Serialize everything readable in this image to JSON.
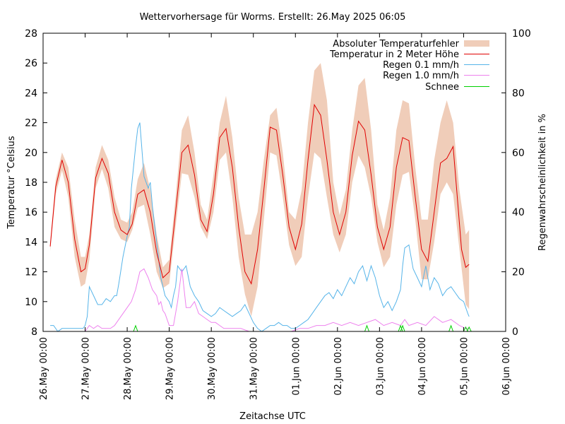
{
  "chart_data": {
    "type": "line",
    "title": "Wettervorhersage für Worms. Erstellt: 26.May 2025 06:05",
    "xlabel": "Zeitachse UTC",
    "ylabel": "Temperatur °Celsius",
    "y2label": "Regenwahrscheinlichkeit in %",
    "ylim": [
      8,
      28
    ],
    "y2lim": [
      0,
      100
    ],
    "yticks": [
      "8",
      "10",
      "12",
      "14",
      "16",
      "18",
      "20",
      "22",
      "24",
      "26",
      "28"
    ],
    "y2ticks": [
      "0",
      "20",
      "40",
      "60",
      "80",
      "100"
    ],
    "xlim_days": [
      0,
      11
    ],
    "xticks": [
      "26.May 00:00",
      "27.May 00:00",
      "28.May 00:00",
      "29.May 00:00",
      "30.May 00:00",
      "31.May 00:00",
      "01.Jun 00:00",
      "02.Jun 00:00",
      "03.Jun 00:00",
      "04.Jun 00:00",
      "05.Jun 00:00",
      "06.Jun 00:00"
    ],
    "grid": false,
    "legend_position": "top-right",
    "colors": {
      "temperature": "#e00000",
      "error_band": "#f0cdb9",
      "rain01": "#56b4e9",
      "rain10": "#ee82ee",
      "snow": "#00d000"
    },
    "series": [
      {
        "name": "Absoluter Temperaturfehler",
        "kind": "band",
        "x_days": [
          0.17,
          0.3,
          0.45,
          0.6,
          0.75,
          0.9,
          1.0,
          1.1,
          1.25,
          1.4,
          1.55,
          1.7,
          1.85,
          2.0,
          2.12,
          2.25,
          2.4,
          2.55,
          2.7,
          2.85,
          3.0,
          3.15,
          3.3,
          3.45,
          3.6,
          3.75,
          3.9,
          4.05,
          4.2,
          4.35,
          4.5,
          4.65,
          4.8,
          4.95,
          5.1,
          5.25,
          5.4,
          5.55,
          5.7,
          5.85,
          6.0,
          6.15,
          6.3,
          6.45,
          6.6,
          6.75,
          6.9,
          7.05,
          7.2,
          7.35,
          7.5,
          7.65,
          7.8,
          7.95,
          8.1,
          8.25,
          8.4,
          8.55,
          8.7,
          8.85,
          9.0,
          9.15,
          9.3,
          9.45,
          9.6,
          9.75,
          9.9,
          10.05,
          10.13
        ],
        "lower": [
          13.4,
          17.2,
          18.8,
          17.0,
          13.0,
          11.0,
          11.2,
          12.8,
          17.6,
          18.9,
          17.6,
          15.0,
          14.2,
          14.0,
          14.8,
          16.3,
          16.5,
          14.5,
          12.0,
          10.9,
          11.2,
          15.0,
          18.6,
          18.5,
          17.0,
          15.0,
          14.2,
          16.0,
          19.5,
          20.0,
          17.0,
          13.0,
          10.5,
          9.0,
          11.0,
          15.5,
          20.0,
          19.8,
          17.0,
          13.8,
          12.4,
          13.0,
          17.0,
          20.0,
          19.6,
          17.0,
          14.5,
          13.3,
          14.5,
          18.0,
          19.8,
          19.0,
          17.0,
          14.0,
          12.3,
          13.0,
          16.5,
          18.5,
          18.7,
          15.5,
          11.5,
          11.5,
          14.0,
          17.2,
          18.0,
          17.2,
          13.5,
          9.8,
          9.5
        ],
        "upper": [
          14.0,
          18.2,
          20.0,
          19.0,
          15.5,
          13.0,
          13.0,
          14.5,
          19.0,
          20.5,
          19.5,
          17.0,
          15.5,
          15.3,
          16.0,
          18.2,
          19.3,
          17.5,
          14.5,
          12.3,
          12.8,
          17.0,
          21.5,
          22.5,
          20.0,
          16.5,
          15.5,
          18.5,
          22.0,
          23.8,
          21.0,
          17.0,
          14.5,
          14.5,
          16.0,
          19.5,
          22.5,
          23.0,
          20.0,
          16.0,
          15.5,
          17.5,
          22.0,
          25.5,
          26.0,
          23.5,
          18.0,
          15.8,
          17.5,
          21.5,
          24.5,
          25.0,
          21.5,
          16.5,
          14.8,
          17.0,
          21.5,
          23.5,
          23.3,
          19.0,
          15.5,
          15.5,
          19.5,
          22.0,
          23.5,
          22.0,
          17.5,
          14.5,
          14.8
        ]
      },
      {
        "name": "Temperatur in 2 Meter Höhe",
        "x_days": [
          0.17,
          0.3,
          0.45,
          0.6,
          0.75,
          0.9,
          1.0,
          1.1,
          1.25,
          1.4,
          1.55,
          1.7,
          1.85,
          2.0,
          2.12,
          2.25,
          2.4,
          2.55,
          2.7,
          2.85,
          3.0,
          3.15,
          3.3,
          3.45,
          3.6,
          3.75,
          3.9,
          4.05,
          4.2,
          4.35,
          4.5,
          4.65,
          4.8,
          4.95,
          5.1,
          5.25,
          5.4,
          5.55,
          5.7,
          5.85,
          6.0,
          6.15,
          6.3,
          6.45,
          6.6,
          6.75,
          6.9,
          7.05,
          7.2,
          7.35,
          7.5,
          7.65,
          7.8,
          7.95,
          8.1,
          8.25,
          8.4,
          8.55,
          8.7,
          8.85,
          9.0,
          9.15,
          9.3,
          9.45,
          9.6,
          9.75,
          9.85,
          9.95,
          10.05,
          10.13
        ],
        "values": [
          13.7,
          17.7,
          19.5,
          18.0,
          14.2,
          12.0,
          12.2,
          13.8,
          18.3,
          19.6,
          18.6,
          16.0,
          14.8,
          14.5,
          15.2,
          17.2,
          17.5,
          16.0,
          13.3,
          11.6,
          12.0,
          16.0,
          20.0,
          20.5,
          18.5,
          15.5,
          14.7,
          17.2,
          21.0,
          21.6,
          19.0,
          15.0,
          12.0,
          11.2,
          13.5,
          17.5,
          21.7,
          21.5,
          18.5,
          15.0,
          13.5,
          15.2,
          19.5,
          23.2,
          22.5,
          19.5,
          16.0,
          14.5,
          16.0,
          19.8,
          22.1,
          21.5,
          18.5,
          15.0,
          13.5,
          15.0,
          19.0,
          21.0,
          20.8,
          17.0,
          13.5,
          12.7,
          16.0,
          19.3,
          19.6,
          20.4,
          17.0,
          13.5,
          12.3,
          12.5
        ]
      },
      {
        "name": "Regen 0.1 mm/h",
        "axis": "y2",
        "x_days": [
          0.17,
          0.25,
          0.35,
          0.45,
          0.6,
          0.8,
          0.95,
          1.0,
          1.05,
          1.1,
          1.2,
          1.3,
          1.4,
          1.5,
          1.6,
          1.7,
          1.75,
          1.8,
          1.9,
          2.0,
          2.05,
          2.1,
          2.15,
          2.2,
          2.25,
          2.3,
          2.4,
          2.5,
          2.55,
          2.6,
          2.7,
          2.8,
          2.9,
          3.0,
          3.05,
          3.1,
          3.15,
          3.2,
          3.3,
          3.4,
          3.5,
          3.6,
          3.7,
          3.8,
          3.9,
          4.0,
          4.1,
          4.2,
          4.3,
          4.4,
          4.5,
          4.6,
          4.7,
          4.8,
          4.9,
          5.0,
          5.1,
          5.2,
          5.3,
          5.4,
          5.5,
          5.6,
          5.7,
          5.8,
          5.9,
          6.0,
          6.1,
          6.2,
          6.3,
          6.4,
          6.5,
          6.6,
          6.7,
          6.8,
          6.9,
          7.0,
          7.1,
          7.2,
          7.3,
          7.4,
          7.5,
          7.6,
          7.7,
          7.8,
          7.9,
          8.0,
          8.1,
          8.2,
          8.3,
          8.4,
          8.5,
          8.55,
          8.6,
          8.7,
          8.8,
          8.9,
          9.0,
          9.1,
          9.2,
          9.3,
          9.4,
          9.5,
          9.6,
          9.7,
          9.8,
          9.9,
          10.0,
          10.1,
          10.13
        ],
        "values": [
          2,
          2,
          0,
          1,
          1,
          1,
          1,
          2,
          5,
          15,
          12,
          9,
          9,
          11,
          10,
          12,
          12,
          16,
          25,
          32,
          35,
          48,
          55,
          62,
          68,
          70,
          52,
          48,
          50,
          42,
          30,
          18,
          12,
          10,
          8,
          12,
          15,
          22,
          20,
          22,
          15,
          12,
          10,
          7,
          6,
          5,
          6,
          8,
          7,
          6,
          5,
          6,
          7,
          9,
          6,
          3,
          1,
          0,
          1,
          2,
          2,
          3,
          2,
          2,
          1,
          1,
          2,
          3,
          4,
          6,
          8,
          10,
          12,
          13,
          11,
          14,
          12,
          15,
          18,
          16,
          20,
          22,
          17,
          22,
          18,
          12,
          8,
          10,
          7,
          10,
          14,
          22,
          28,
          29,
          21,
          18,
          15,
          22,
          14,
          18,
          16,
          12,
          14,
          15,
          13,
          11,
          10,
          6,
          5,
          7
        ]
      },
      {
        "name": "Regen 1.0 mm/h",
        "axis": "y2",
        "x_days": [
          0.17,
          0.5,
          0.9,
          1.0,
          1.05,
          1.1,
          1.2,
          1.3,
          1.4,
          1.5,
          1.6,
          1.7,
          1.8,
          1.9,
          2.0,
          2.1,
          2.2,
          2.3,
          2.4,
          2.5,
          2.6,
          2.7,
          2.75,
          2.8,
          2.85,
          2.9,
          3.0,
          3.1,
          3.2,
          3.3,
          3.4,
          3.5,
          3.6,
          3.7,
          3.8,
          3.9,
          4.0,
          4.1,
          4.2,
          4.3,
          4.5,
          4.7,
          4.9,
          5.1,
          5.3,
          5.5,
          5.7,
          5.9,
          6.1,
          6.3,
          6.5,
          6.7,
          6.9,
          7.1,
          7.3,
          7.5,
          7.7,
          7.9,
          8.1,
          8.3,
          8.5,
          8.6,
          8.7,
          8.9,
          9.1,
          9.3,
          9.5,
          9.7,
          9.9,
          10.05,
          10.13
        ],
        "values": [
          0,
          0,
          0,
          0,
          1,
          2,
          1,
          2,
          1,
          1,
          1,
          2,
          4,
          6,
          8,
          10,
          14,
          20,
          21,
          18,
          14,
          12,
          9,
          10,
          7,
          6,
          2,
          2,
          10,
          21,
          8,
          8,
          10,
          6,
          5,
          4,
          3,
          3,
          2,
          1,
          1,
          1,
          0,
          0,
          0,
          0,
          0,
          0,
          1,
          1,
          2,
          2,
          3,
          2,
          3,
          2,
          3,
          4,
          2,
          3,
          2,
          4,
          2,
          3,
          2,
          5,
          3,
          4,
          2,
          1,
          1
        ]
      },
      {
        "name": "Schnee",
        "axis": "y2",
        "x_days": [
          2.2,
          7.7,
          8.5,
          8.55,
          9.7,
          10.05,
          10.13
        ],
        "values": [
          1,
          1,
          1,
          1,
          1,
          0.5,
          0.5
        ]
      }
    ]
  },
  "legend": {
    "items": [
      "Absoluter Temperaturfehler",
      "Temperatur in 2 Meter Höhe",
      "Regen 0.1 mm/h",
      "Regen 1.0 mm/h",
      "Schnee"
    ]
  }
}
